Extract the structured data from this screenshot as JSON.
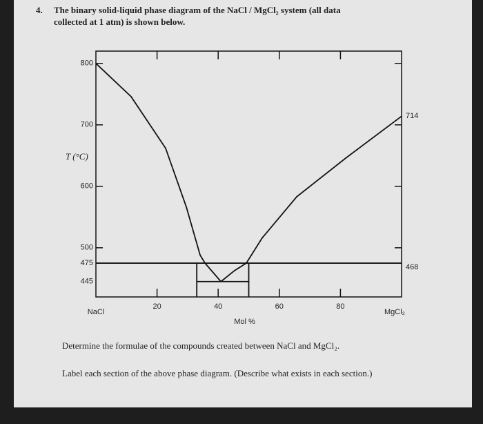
{
  "question": {
    "number": "4.",
    "text": "The binary solid-liquid phase diagram of the NaCl / MgCl₂ system (all data collected at 1 atm) is shown below."
  },
  "chart_data": {
    "type": "line",
    "ylabel": "T (°C)",
    "xlabel": "Mol %",
    "x_left_label": "NaCl",
    "x_right_label": "MgCl₂",
    "xlim": [
      0,
      100
    ],
    "xticks": [
      20,
      40,
      60,
      80
    ],
    "ylim": [
      420,
      820
    ],
    "yticks": [
      445,
      475,
      500,
      600,
      700,
      800
    ],
    "right_labels": [
      714,
      468
    ],
    "series": [
      {
        "color": "#111111",
        "x": [
          0,
          11.5,
          22.8,
          29.6,
          34.1,
          35.7,
          40.9
        ],
        "values": [
          800,
          746,
          662,
          566,
          488,
          475,
          445
        ]
      },
      {
        "color": "#111111",
        "x": [
          40.9,
          45.4,
          49.2,
          54.4,
          65.7,
          81.5,
          100
        ],
        "values": [
          445,
          463,
          475,
          516,
          583,
          645,
          714
        ]
      },
      {
        "color": "#111111",
        "x": [
          0,
          100
        ],
        "values": [
          475,
          475
        ]
      },
      {
        "color": "#111111",
        "x": [
          33,
          50
        ],
        "values": [
          445,
          445
        ]
      },
      {
        "color": "#111111",
        "x": [
          33,
          33
        ],
        "values": [
          475,
          420
        ]
      },
      {
        "color": "#111111",
        "x": [
          50,
          50
        ],
        "values": [
          475,
          420
        ]
      }
    ]
  },
  "footer": {
    "task1": "Determine the formulae of the compounds created between NaCl and MgCl₂.",
    "task2": "Label each section of the above phase diagram. (Describe what exists in each section.)"
  }
}
